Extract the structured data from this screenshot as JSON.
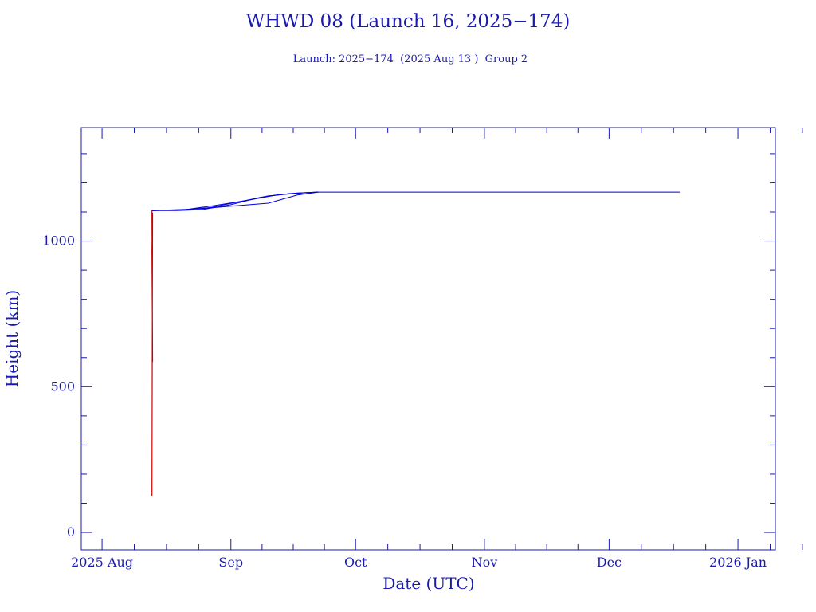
{
  "chart_data": {
    "type": "line",
    "title": "WHWD 08 (Launch 16, 2025−174)",
    "subtitle": "Launch: 2025−174  (2025 Aug 13 )  Group 2",
    "xlabel": "Date (UTC)",
    "ylabel": "Height (km)",
    "x_ticks": [
      "2025 Aug",
      "Sep",
      "Oct",
      "Nov",
      "Dec",
      "2026 Jan"
    ],
    "y_ticks": [
      0,
      500,
      1000
    ],
    "xlim": [
      "2025-07-27",
      "2026-01-10"
    ],
    "ylim": [
      -60,
      1390
    ],
    "grid": false,
    "colors": {
      "axis": "#1a1ab0",
      "launch": "#cc0000",
      "orbit": "#0000e0"
    },
    "series": [
      {
        "color": "#cc0000",
        "x": [
          "2025-08-13",
          "2025-08-13",
          "2025-08-13",
          "2025-08-13",
          "2025-08-13"
        ],
        "y": [
          125,
          1098,
          965,
          585,
          1105
        ]
      },
      {
        "color": "#0000e0",
        "x": [
          "2025-08-13",
          "2025-08-19",
          "2025-08-25",
          "2025-09-01",
          "2025-09-08",
          "2025-09-15",
          "2025-09-22",
          "2025-12-18"
        ],
        "y": [
          1105,
          1105,
          1108,
          1125,
          1150,
          1163,
          1168,
          1168
        ]
      },
      {
        "color": "#0000e0",
        "x": [
          "2025-08-13",
          "2025-08-21",
          "2025-08-28",
          "2025-09-05",
          "2025-09-12",
          "2025-09-19",
          "2025-09-22"
        ],
        "y": [
          1105,
          1108,
          1122,
          1140,
          1158,
          1166,
          1168
        ]
      },
      {
        "color": "#0000e0",
        "x": [
          "2025-08-13",
          "2025-08-24",
          "2025-09-01",
          "2025-09-10",
          "2025-09-17",
          "2025-09-22"
        ],
        "y": [
          1105,
          1110,
          1120,
          1130,
          1158,
          1168
        ]
      },
      {
        "color": "#0000e0",
        "x": [
          "2025-08-13",
          "2025-08-20",
          "2025-08-27",
          "2025-09-03",
          "2025-09-10",
          "2025-09-17",
          "2025-09-22"
        ],
        "y": [
          1105,
          1107,
          1115,
          1135,
          1155,
          1165,
          1168
        ]
      }
    ]
  }
}
